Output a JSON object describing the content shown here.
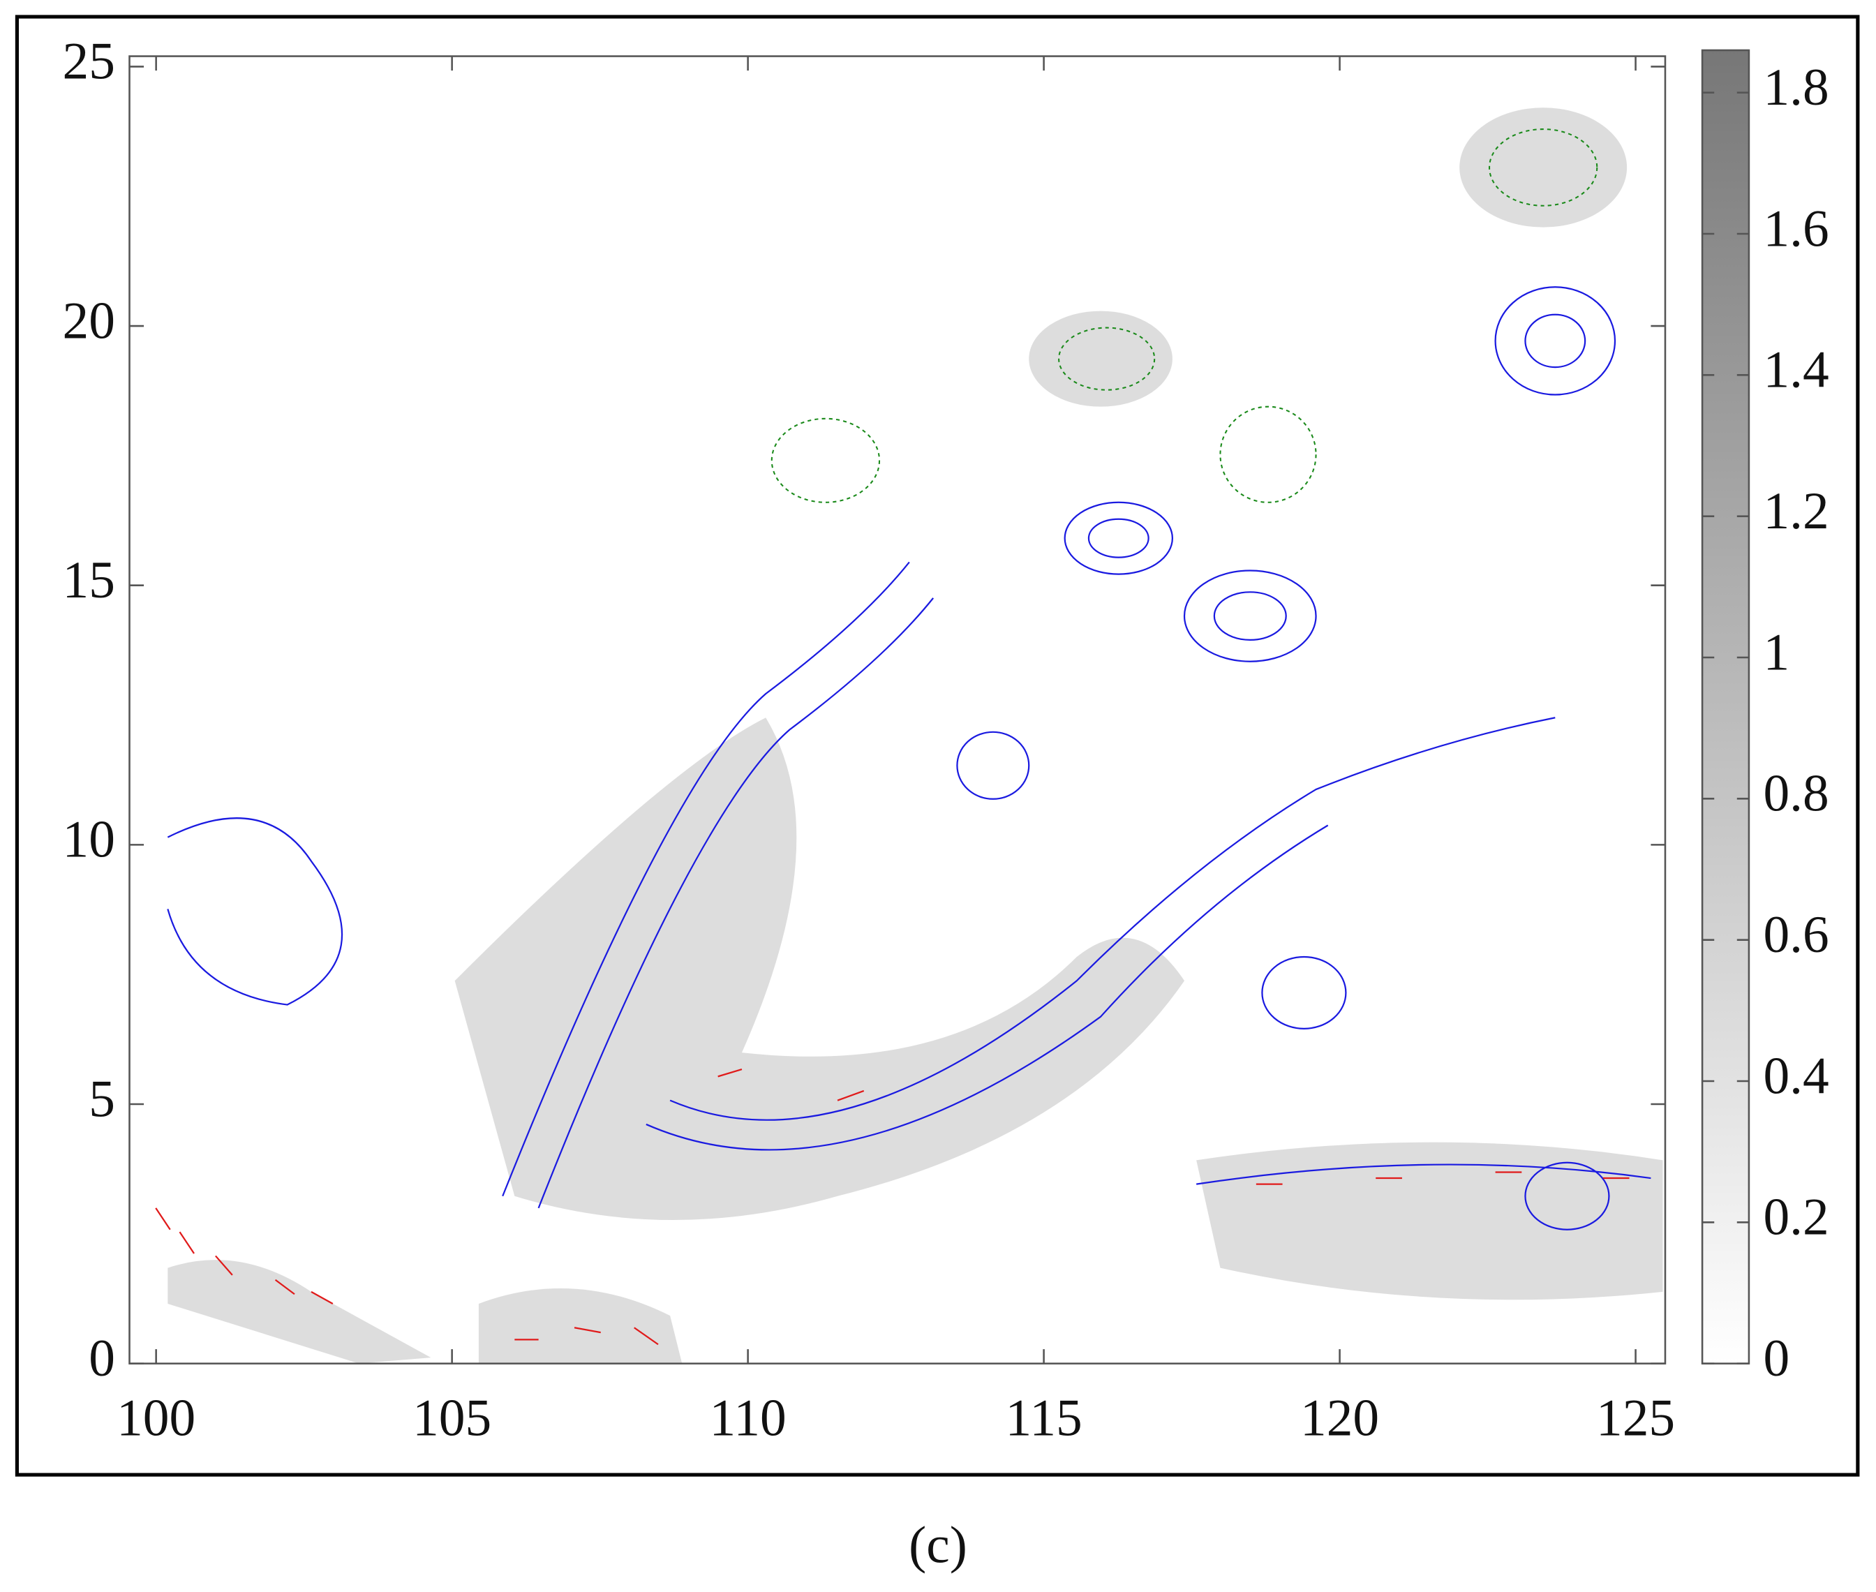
{
  "chart_data": {
    "type": "field",
    "xlim": [
      99.55,
      125.5
    ],
    "ylim": [
      0,
      25.2
    ],
    "xticks": [
      100,
      105,
      110,
      115,
      120,
      125
    ],
    "yticks": [
      0,
      5,
      10,
      15,
      20,
      25
    ],
    "grid": false,
    "colorbar": {
      "lim": [
        0,
        1.86
      ],
      "ticks": [
        0,
        0.2,
        0.4,
        0.6,
        0.8,
        1,
        1.2,
        1.4,
        1.6,
        1.8
      ],
      "colors": [
        "#ffffff",
        "#777777"
      ]
    },
    "caption": "(c)"
  }
}
